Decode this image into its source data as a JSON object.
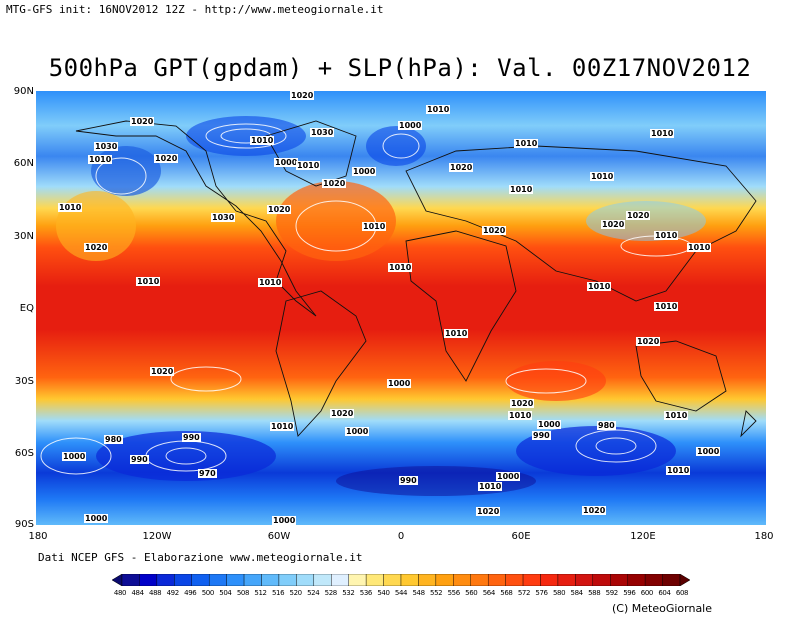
{
  "header": {
    "model_info": "MTG-GFS init: 16NOV2012 12Z - http://www.meteogiornale.it",
    "title": "500hPa GPT(gpdam) + SLP(hPa): Val. 00Z17NOV2012"
  },
  "axes": {
    "latitude_labels": [
      "90N",
      "60N",
      "30N",
      "EQ",
      "30S",
      "60S",
      "90S"
    ],
    "longitude_labels": [
      "180",
      "120W",
      "60W",
      "0",
      "60E",
      "120E",
      "180"
    ]
  },
  "footer": {
    "credit": "Dati NCEP GFS - Elaborazione www.meteogiornale.it",
    "copyright": "(C) MeteoGiornale"
  },
  "legend": {
    "values": [
      "480",
      "484",
      "488",
      "492",
      "496",
      "500",
      "504",
      "508",
      "512",
      "516",
      "520",
      "524",
      "528",
      "532",
      "536",
      "540",
      "544",
      "548",
      "552",
      "556",
      "560",
      "564",
      "568",
      "572",
      "576",
      "580",
      "584",
      "588",
      "592",
      "596",
      "600",
      "604",
      "608"
    ],
    "colors": [
      "#0a0a6e",
      "#0d0d96",
      "#0000c8",
      "#0a28d8",
      "#0a46e6",
      "#1060f0",
      "#1e78f5",
      "#2e90fa",
      "#46a6fa",
      "#60bafa",
      "#80cdfa",
      "#a0dcfa",
      "#c0e8fa",
      "#e0f0ff",
      "#fff5b0",
      "#ffe878",
      "#ffd850",
      "#ffc830",
      "#ffb420",
      "#ffa010",
      "#ff8c10",
      "#ff7810",
      "#ff6410",
      "#ff5010",
      "#ff3c10",
      "#f52810",
      "#e61e10",
      "#d21410",
      "#be0a0a",
      "#aa0505",
      "#960000",
      "#820000",
      "#6e0000",
      "#5a0000"
    ]
  },
  "slp_labels": [
    "1020",
    "1010",
    "1030",
    "1010",
    "1000",
    "1020",
    "1010",
    "1000",
    "1010",
    "1030",
    "1010",
    "1000",
    "1020",
    "1010",
    "1010",
    "1020",
    "1020",
    "1010",
    "1010",
    "1030",
    "1020",
    "1020",
    "1010",
    "1020",
    "1010",
    "1020",
    "1020",
    "1010",
    "1010",
    "1010",
    "1010",
    "1010",
    "1010",
    "1010",
    "1020",
    "1020",
    "1000",
    "1020",
    "1020",
    "1010",
    "1010",
    "1010",
    "980",
    "990",
    "1000",
    "1000",
    "1000",
    "990",
    "980",
    "990",
    "970",
    "990",
    "1010",
    "1000",
    "1010",
    "1000",
    "1020",
    "1020",
    "1000",
    "1000"
  ]
}
